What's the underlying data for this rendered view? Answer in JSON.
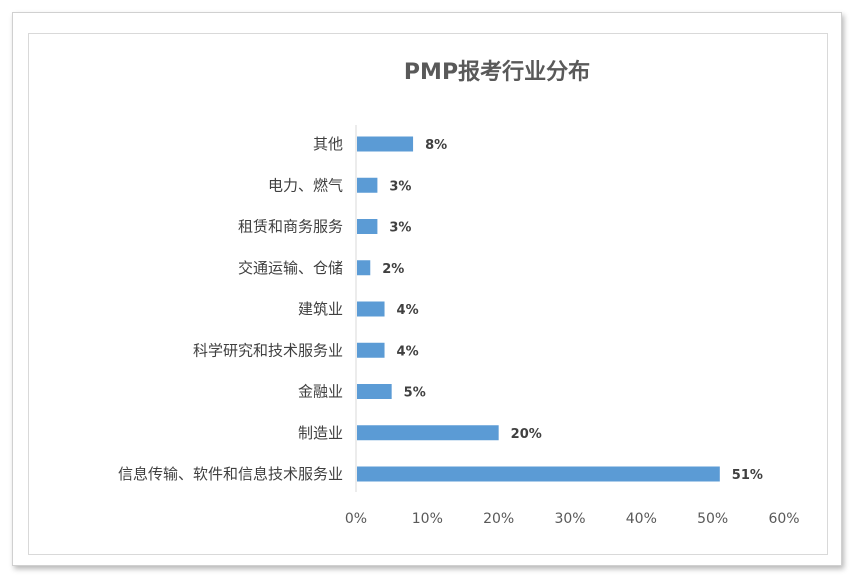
{
  "chart_data": {
    "type": "bar",
    "orientation": "horizontal",
    "title": "PMP报考行业分布",
    "categories": [
      "其他",
      "电力、燃气",
      "租赁和商务服务",
      "交通运输、仓储",
      "建筑业",
      "科学研究和技术服务业",
      "金融业",
      "制造业",
      "信息传输、软件和信息技术服务业"
    ],
    "values": [
      8,
      3,
      3,
      2,
      4,
      4,
      5,
      20,
      51
    ],
    "data_labels": [
      "8%",
      "3%",
      "3%",
      "2%",
      "4%",
      "4%",
      "5%",
      "20%",
      "51%"
    ],
    "xlim": [
      0,
      60
    ],
    "x_ticks": [
      "0%",
      "10%",
      "20%",
      "30%",
      "40%",
      "50%",
      "60%"
    ],
    "grid": false,
    "legend": "none",
    "bar_color": "#5b9bd5"
  }
}
